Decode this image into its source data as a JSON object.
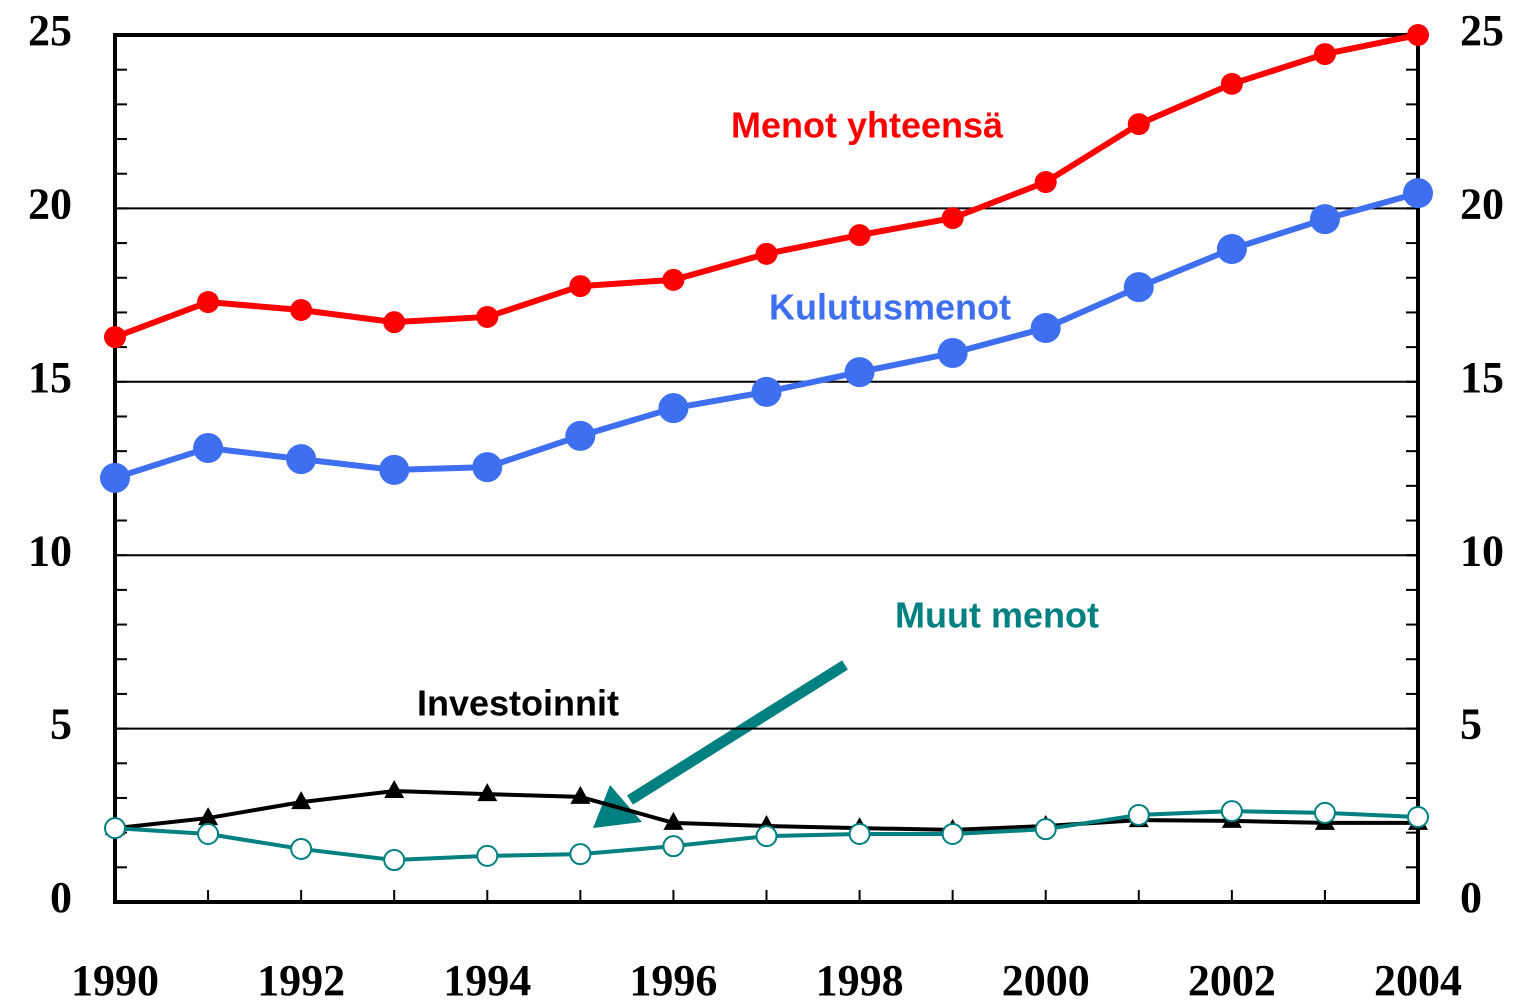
{
  "chart_data": {
    "type": "line",
    "x": [
      1990,
      1991,
      1992,
      1993,
      1994,
      1995,
      1996,
      1997,
      1998,
      1999,
      2000,
      2001,
      2002,
      2003,
      2004
    ],
    "xlim": [
      1990,
      2004
    ],
    "xticks": [
      1990,
      1992,
      1994,
      1996,
      1998,
      2000,
      2002,
      2004
    ],
    "ylim": [
      0,
      25
    ],
    "yticks": [
      0,
      5,
      10,
      15,
      20,
      25
    ],
    "y2lim": [
      0,
      25
    ],
    "y2ticks": [
      0,
      5,
      10,
      15,
      20,
      25
    ],
    "grid": true,
    "series": [
      {
        "name": "Menot yhteensä",
        "color": "#ff0000",
        "marker": "circle",
        "values": [
          16.29,
          17.3,
          17.07,
          16.72,
          16.87,
          17.76,
          17.94,
          18.69,
          19.23,
          19.72,
          20.76,
          22.43,
          23.59,
          24.45,
          25.0
        ]
      },
      {
        "name": "Kulutusmenot",
        "color": "#3d6ff0",
        "marker": "circle",
        "values": [
          12.23,
          13.09,
          12.77,
          12.46,
          12.54,
          13.44,
          14.24,
          14.71,
          15.28,
          15.83,
          16.55,
          17.73,
          18.83,
          19.69,
          20.44
        ]
      },
      {
        "name": "Investoinnit",
        "color": "#000000",
        "marker": "triangle",
        "values": [
          2.13,
          2.42,
          2.88,
          3.2,
          3.11,
          3.03,
          2.28,
          2.19,
          2.13,
          2.08,
          2.19,
          2.36,
          2.34,
          2.28,
          2.28
        ]
      },
      {
        "name": "Muut menot",
        "color": "#008080",
        "marker": "open-circle",
        "values": [
          2.13,
          1.96,
          1.53,
          1.21,
          1.33,
          1.38,
          1.61,
          1.9,
          1.96,
          1.96,
          2.1,
          2.51,
          2.62,
          2.57,
          2.45
        ]
      }
    ]
  }
}
